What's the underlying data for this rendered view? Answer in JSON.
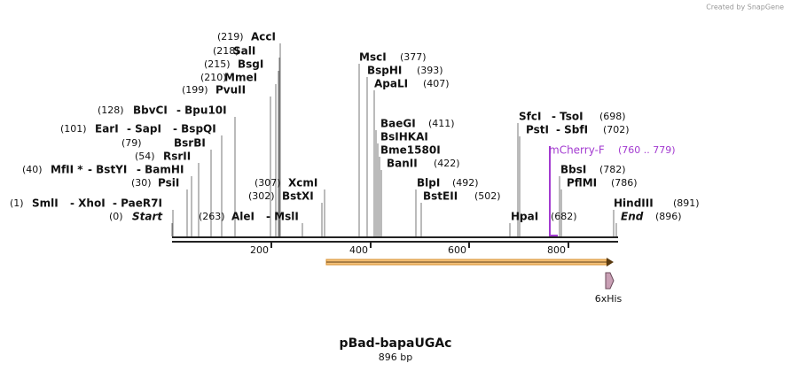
{
  "header": {
    "credit": "Created by SnapGene"
  },
  "sites": [
    [
      "(219)",
      "AccI"
    ],
    [
      "(218)",
      "SalI"
    ],
    [
      "(215)",
      "BsgI"
    ],
    [
      "(210)",
      "MmeI"
    ],
    [
      "(199)",
      "PvuII"
    ],
    [
      "(128)",
      "BbvCI",
      "- Bpu10I"
    ],
    [
      "(101)",
      "EarI",
      "- SapI",
      "- BspQI"
    ],
    [
      "(79)",
      "BsrBI"
    ],
    [
      "(54)",
      "RsrII"
    ],
    [
      "(40)",
      "MfII *",
      "- BstYI",
      "- BamHI"
    ],
    [
      "(30)",
      "PsiI"
    ],
    [
      "(1)",
      "SmlI",
      "- XhoI",
      "- PaeR7I"
    ],
    [
      "(0)",
      "Start"
    ],
    [
      "(263)",
      "AleI",
      "- MslI"
    ],
    [
      "(307)",
      "XcmI"
    ],
    [
      "(302)",
      "BstXI"
    ],
    [
      "MscI",
      "(377)"
    ],
    [
      "BspHI",
      "(393)"
    ],
    [
      "ApaLI",
      "(407)"
    ],
    [
      "BaeGI",
      "(411)"
    ],
    [
      "BsIHKAI"
    ],
    [
      "Bme1580I"
    ],
    [
      "BanII",
      "(422)"
    ],
    [
      "BlpI",
      "(492)"
    ],
    [
      "BstEII",
      "(502)"
    ],
    [
      "SfcI",
      "- TsoI",
      "(698)"
    ],
    [
      "PstI",
      "- SbfI",
      "(702)"
    ],
    [
      "BbsI",
      "(782)"
    ],
    [
      "PflMI",
      "(786)"
    ],
    [
      "HpaI",
      "(682)"
    ],
    [
      "HindIII",
      "(891)"
    ],
    [
      "End",
      "(896)"
    ]
  ],
  "primer": [
    "mCherry-F",
    "(760 .. 779)"
  ],
  "ruler": [
    "200",
    "400",
    "600",
    "800"
  ],
  "feature": "6xHis",
  "footer": {
    "title": "pBad-bapaUGAc",
    "length": "896 bp"
  }
}
